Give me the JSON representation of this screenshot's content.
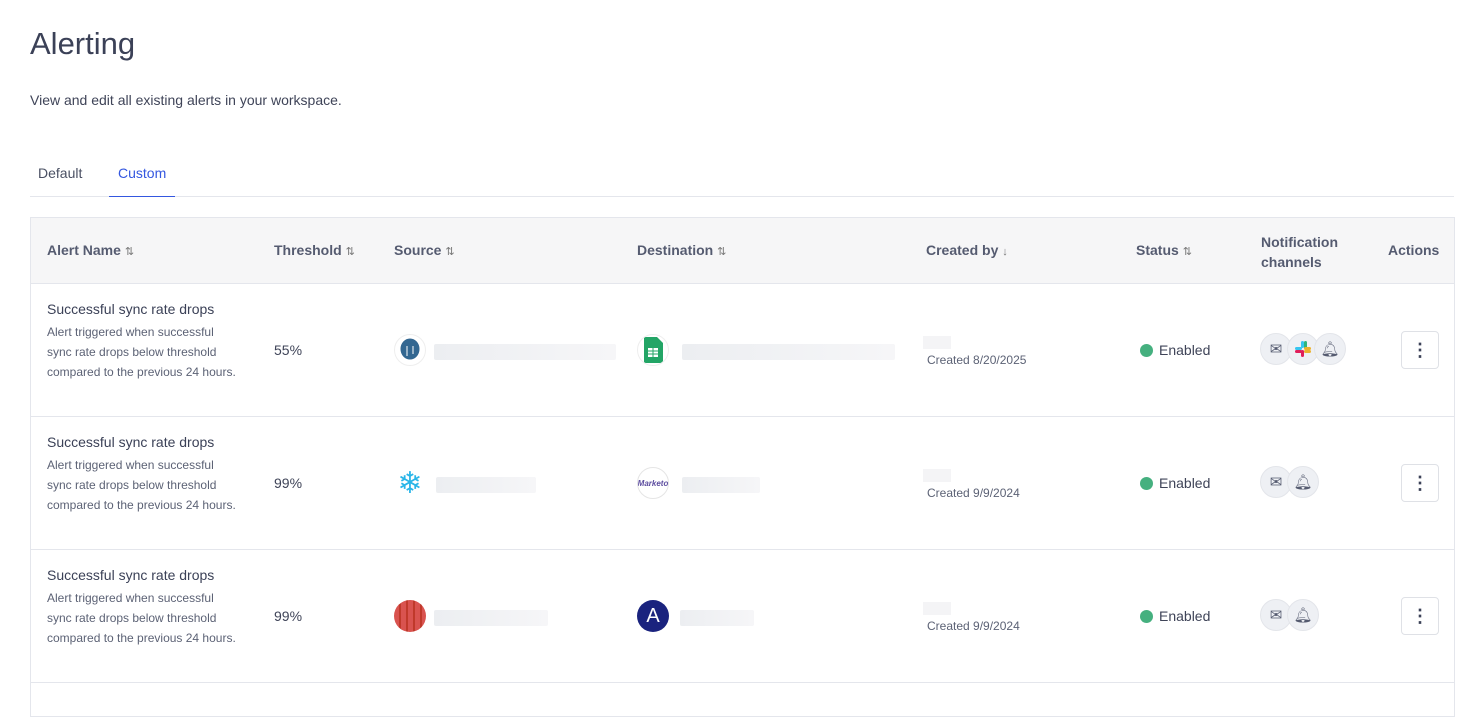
{
  "page": {
    "title": "Alerting",
    "subtitle": "View and edit all existing alerts in your workspace."
  },
  "tabs": [
    {
      "label": "Default",
      "active": false
    },
    {
      "label": "Custom",
      "active": true
    }
  ],
  "columns": {
    "alert_name": "Alert Name",
    "threshold": "Threshold",
    "source": "Source",
    "destination": "Destination",
    "created_by": "Created by",
    "status": "Status",
    "notification_channels": "Notification channels",
    "actions": "Actions"
  },
  "sort_icons": {
    "both": "⇅",
    "down": "↓"
  },
  "rows": [
    {
      "name": "Successful sync rate drops",
      "description": "Alert triggered when successful sync rate drops below threshold compared to the previous 24 hours.",
      "threshold": "55%",
      "source_icon": "postgresql-icon",
      "destination_icon": "google-sheets-icon",
      "created": "Created 8/20/2025",
      "status": "Enabled",
      "channels": [
        "email",
        "slack",
        "in-app"
      ]
    },
    {
      "name": "Successful sync rate drops",
      "description": "Alert triggered when successful sync rate drops below threshold compared to the previous 24 hours.",
      "threshold": "99%",
      "source_icon": "snowflake-icon",
      "destination_icon": "marketo-icon",
      "destination_logo_text": "Marketo",
      "created": "Created 9/9/2024",
      "status": "Enabled",
      "channels": [
        "email",
        "in-app"
      ]
    },
    {
      "name": "Successful sync rate drops",
      "description": "Alert triggered when successful sync rate drops below threshold compared to the previous 24 hours.",
      "threshold": "99%",
      "source_icon": "redshift-icon",
      "destination_icon": "amplitude-icon",
      "created": "Created 9/9/2024",
      "status": "Enabled",
      "channels": [
        "email",
        "in-app"
      ]
    }
  ],
  "colors": {
    "accent": "#3457e0",
    "enabled": "#45b07f"
  }
}
